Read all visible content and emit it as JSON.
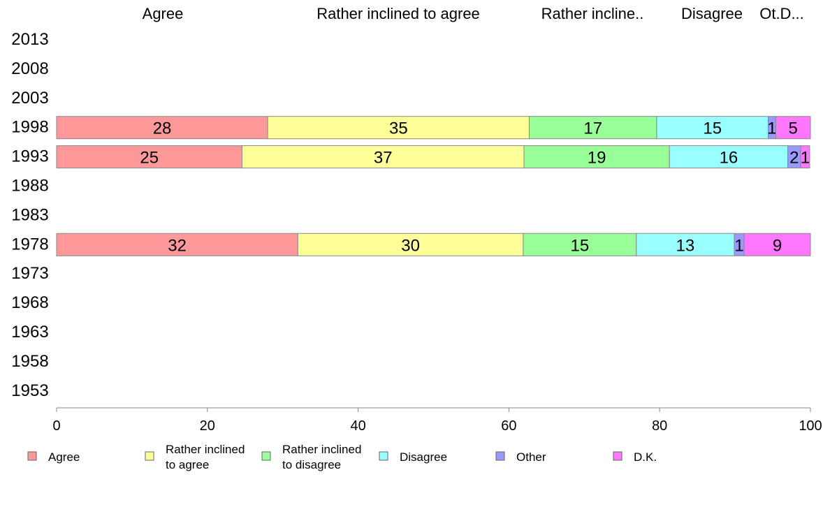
{
  "chart_data": {
    "type": "bar",
    "orientation": "horizontal",
    "stacked": true,
    "years": [
      "2013",
      "2008",
      "2003",
      "1998",
      "1993",
      "1988",
      "1983",
      "1978",
      "1973",
      "1968",
      "1963",
      "1958",
      "1953"
    ],
    "column_headers": [
      "Agree",
      "Rather inclined to agree",
      "Rather incline..",
      "Disagree",
      "Ot.D..."
    ],
    "series": [
      {
        "name": "Agree",
        "legend": [
          "Agree"
        ],
        "color": "#ff9999"
      },
      {
        "name": "Rather inclined to agree",
        "legend": [
          "Rather inclined",
          "to agree"
        ],
        "color": "#ffff99"
      },
      {
        "name": "Rather inclined to disagree",
        "legend": [
          "Rather inclined",
          "to disagree"
        ],
        "color": "#99ff99"
      },
      {
        "name": "Disagree",
        "legend": [
          "Disagree"
        ],
        "color": "#99ffff"
      },
      {
        "name": "Other",
        "legend": [
          "Other"
        ],
        "color": "#9999ff"
      },
      {
        "name": "D.K.",
        "legend": [
          "D.K."
        ],
        "color": "#ff77ff"
      }
    ],
    "data": {
      "1998": {
        "values": [
          28,
          35,
          17,
          15,
          1,
          5
        ],
        "shares": [
          28,
          34.7,
          16.9,
          14.8,
          1.0,
          4.6
        ],
        "labels": [
          "28",
          "35",
          "17",
          "15",
          "1",
          "5"
        ]
      },
      "1993": {
        "values": [
          25,
          37,
          19,
          16,
          2,
          1
        ],
        "shares": [
          24.6,
          37.4,
          19.3,
          15.7,
          1.7,
          1.2
        ],
        "labels": [
          "25",
          "37",
          "19",
          "16",
          "2",
          "1"
        ]
      },
      "1978": {
        "values": [
          32,
          30,
          15,
          13,
          1,
          9
        ],
        "shares": [
          32.0,
          29.9,
          15.0,
          13.0,
          1.3,
          8.8
        ],
        "labels": [
          "32",
          "30",
          "15",
          "13",
          "1",
          "9"
        ]
      }
    },
    "x_ticks": [
      "0",
      "20",
      "40",
      "60",
      "80",
      "100"
    ],
    "xlim": [
      0,
      100
    ],
    "legend_position": "bottom"
  }
}
